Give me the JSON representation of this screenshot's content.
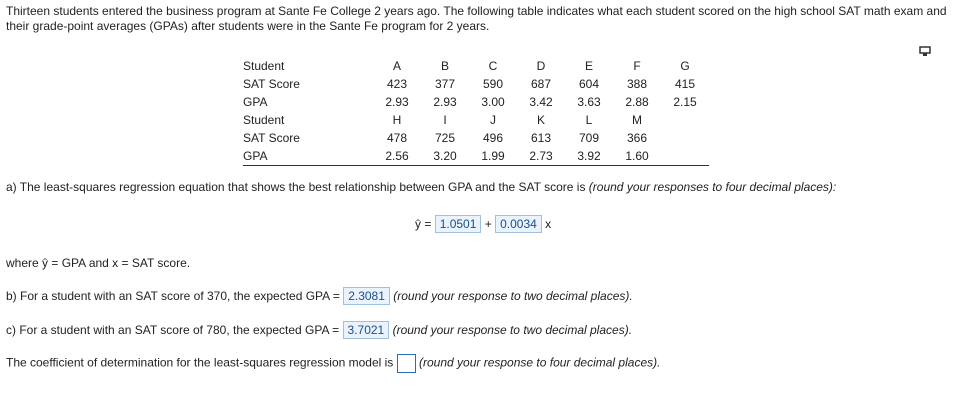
{
  "intro": "Thirteen students entered the business program at Sante Fe College 2 years ago. The following table indicates what each student scored on the high school SAT math exam and their grade-point averages (GPAs) after students were in the Sante Fe program for 2 years.",
  "table": {
    "rows": [
      [
        "Student",
        "A",
        "B",
        "C",
        "D",
        "E",
        "F",
        "G"
      ],
      [
        "SAT Score",
        "423",
        "377",
        "590",
        "687",
        "604",
        "388",
        "415"
      ],
      [
        "GPA",
        "2.93",
        "2.93",
        "3.00",
        "3.42",
        "3.63",
        "2.88",
        "2.15"
      ],
      [
        "Student",
        "H",
        "I",
        "J",
        "K",
        "L",
        "M"
      ],
      [
        "SAT Score",
        "478",
        "725",
        "496",
        "613",
        "709",
        "366"
      ],
      [
        "GPA",
        "2.56",
        "3.20",
        "1.99",
        "2.73",
        "3.92",
        "1.60"
      ]
    ]
  },
  "part_a": {
    "text": "a) The least-squares regression equation that shows the best relationship between GPA and the SAT score is",
    "note": "(round your responses to four decimal places):",
    "equation": {
      "lhs": "ŷ =",
      "intercept": "1.0501",
      "plus": "+",
      "slope": "0.0034",
      "variable": "x"
    }
  },
  "where": "where ŷ = GPA and x = SAT score.",
  "part_b": {
    "text": "b) For a student with an SAT score of 370, the expected GPA =",
    "answer": "2.3081",
    "note": "(round your response to two decimal places)."
  },
  "part_c": {
    "text": "c) For a student with an SAT score of 780, the expected GPA =",
    "answer": "3.7021",
    "note": "(round your response to two decimal places)."
  },
  "part_d": {
    "text": "The coefficient of determination for the least-squares regression model is",
    "note": "(round your response to four decimal places)."
  }
}
